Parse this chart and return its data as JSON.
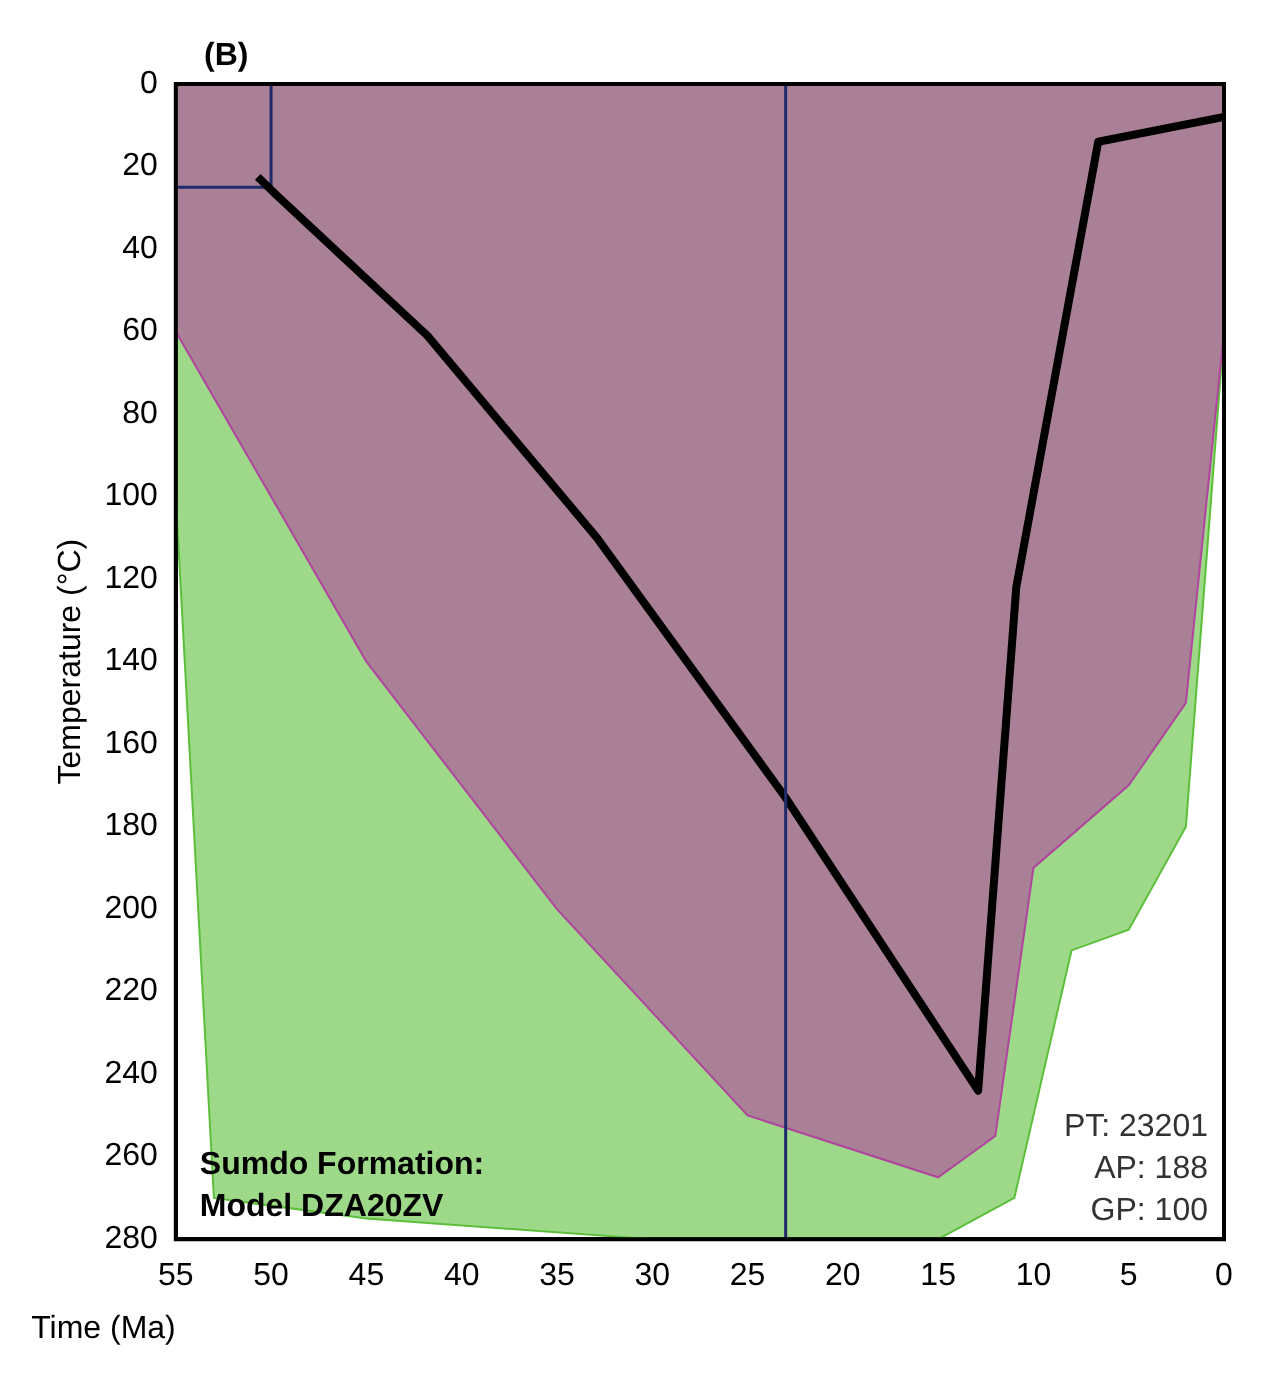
{
  "chart_data": {
    "type": "line",
    "xlabel": "Time (Ma)",
    "ylabel": "Temperature (°C)",
    "xlim": [
      55,
      0
    ],
    "xticks": [
      55,
      50,
      45,
      40,
      35,
      30,
      25,
      20,
      15,
      10,
      5,
      0
    ],
    "ylim": [
      280,
      0
    ],
    "yticks": [
      0,
      20,
      40,
      60,
      80,
      100,
      120,
      140,
      160,
      180,
      200,
      220,
      240,
      260,
      280
    ],
    "grid": false,
    "legend": false,
    "marker": "none",
    "line_style": "solid",
    "series": [
      {
        "type": "area",
        "color": "#5cbf3a",
        "x": [
          55,
          53,
          45,
          30,
          15,
          11,
          8,
          5,
          2,
          0
        ],
        "values": [
          100,
          270,
          275,
          280,
          280,
          270,
          210,
          205,
          180,
          60
        ]
      },
      {
        "type": "area",
        "color": "#b0449e",
        "x": [
          55,
          45,
          35,
          25,
          15,
          12,
          10,
          5,
          2,
          0
        ],
        "values": [
          60,
          140,
          200,
          250,
          265,
          255,
          190,
          170,
          150,
          60
        ]
      },
      {
        "color": "#1f2a6b",
        "x": [
          55,
          50,
          50
        ],
        "values": [
          25,
          25,
          0
        ]
      },
      {
        "color": "#000000",
        "x": [
          50.7,
          49.7,
          41.8,
          32.9,
          23,
          12.9,
          10.9,
          6.6,
          0
        ],
        "values": [
          22.5,
          27,
          61,
          110,
          173,
          244,
          122,
          14,
          8
        ]
      }
    ],
    "ref_lines": [
      {
        "axis": "x",
        "value": 23,
        "color": "#1f2a6b"
      }
    ],
    "annotations": [
      "(B)",
      "Sumdo Formation:\nModel DZA20ZV",
      "PT: 23201\nAP: 188\nGP: 100"
    ]
  }
}
